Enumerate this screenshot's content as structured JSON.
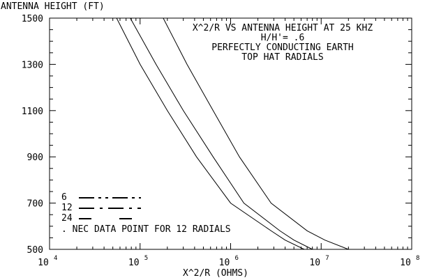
{
  "chart_data": {
    "type": "line",
    "title_lines": [
      "X^2/R VS ANTENNA HEIGHT AT 25 KHZ",
      "H/H'= .6",
      "PERFECTLY CONDUCTING EARTH",
      "TOP HAT RADIALS"
    ],
    "ylabel": "ANTENNA HEIGHT (FT)",
    "xlabel": "X^2/R (OHMS)",
    "x_scale": "log",
    "xlim": [
      10000,
      100000000
    ],
    "ylim": [
      500,
      1500
    ],
    "x_tick_exponents": [
      "4",
      "5",
      "6",
      "7",
      "8"
    ],
    "x_tick_base": "10",
    "y_ticks": [
      "500",
      "700",
      "900",
      "1100",
      "1300",
      "1500"
    ],
    "grid": false,
    "legend": {
      "placement": "bottom-left",
      "entries": [
        {
          "label": "6"
        },
        {
          "label": "12"
        },
        {
          "label": "24"
        }
      ],
      "note": ". NEC DATA POINT FOR 12 RADIALS"
    },
    "series": [
      {
        "label_ref": "6",
        "points": [
          [
            55000,
            1500
          ],
          [
            100000,
            1300
          ],
          [
            200000,
            1100
          ],
          [
            420000,
            900
          ],
          [
            1000000,
            700
          ],
          [
            2800000,
            580
          ],
          [
            4000000,
            540
          ],
          [
            6500000,
            500
          ]
        ]
      },
      {
        "label_ref": "12",
        "points": [
          [
            78000,
            1500
          ],
          [
            150000,
            1300
          ],
          [
            300000,
            1100
          ],
          [
            640000,
            900
          ],
          [
            1400000,
            700
          ],
          [
            3500000,
            580
          ],
          [
            5000000,
            540
          ],
          [
            8000000,
            500
          ]
        ]
      },
      {
        "label_ref": "24",
        "points": [
          [
            180000,
            1500
          ],
          [
            330000,
            1300
          ],
          [
            640000,
            1100
          ],
          [
            1250000,
            900
          ],
          [
            2800000,
            700
          ],
          [
            7000000,
            580
          ],
          [
            11000000,
            540
          ],
          [
            20000000,
            500
          ]
        ]
      }
    ]
  }
}
